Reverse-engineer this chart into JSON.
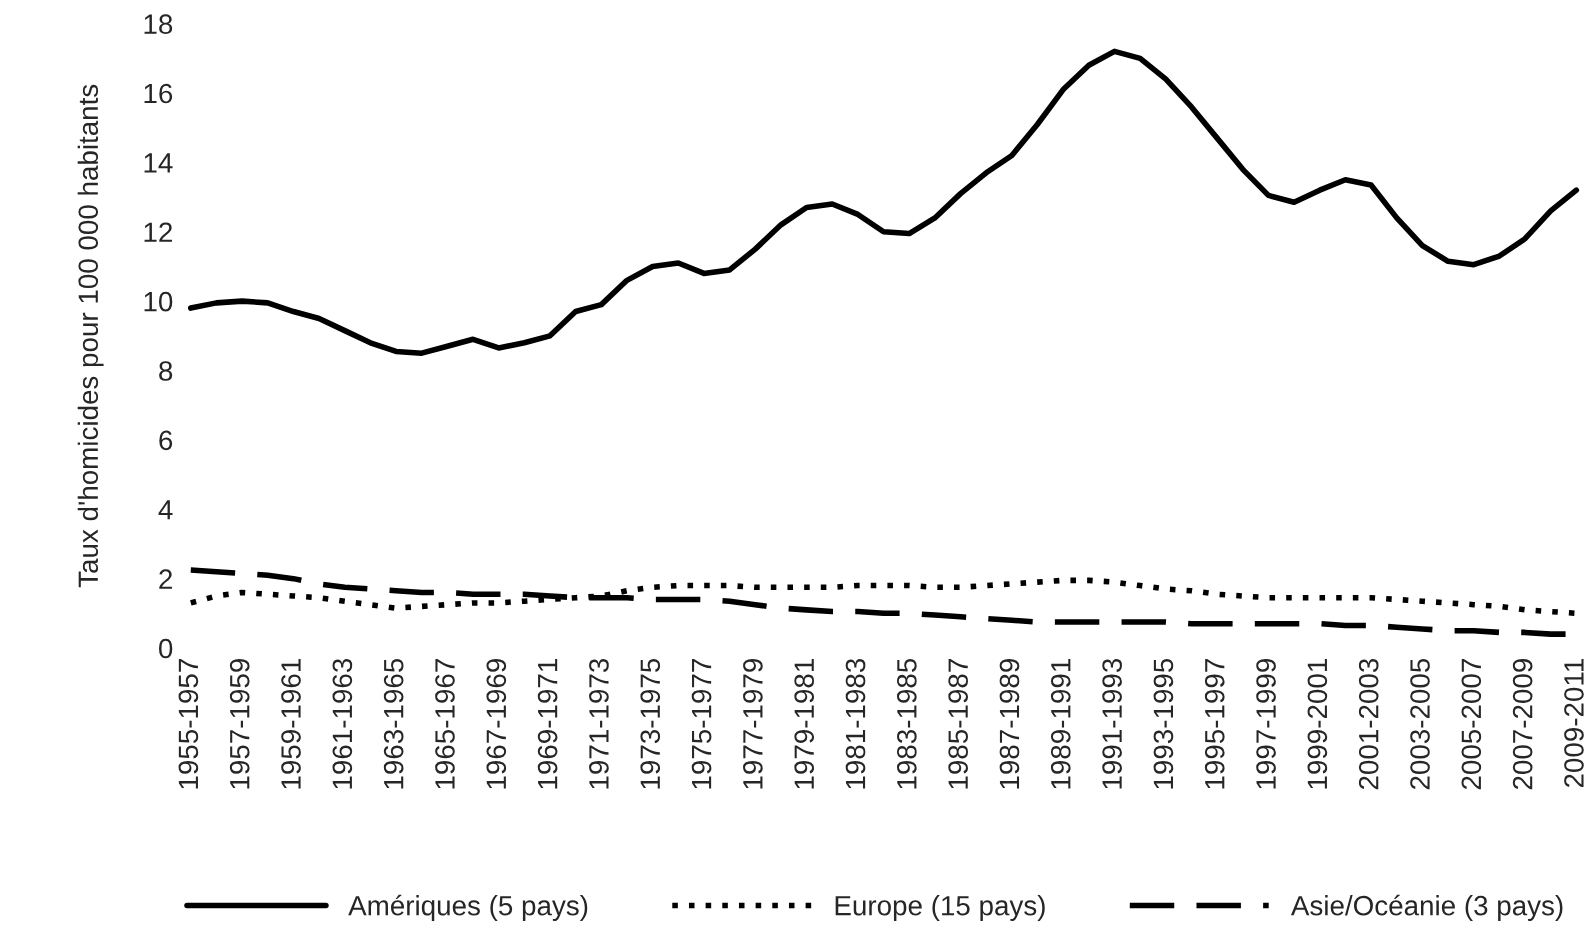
{
  "chart_data": {
    "type": "line",
    "ylabel": "Taux d'homicides pour 100 000 habitants",
    "categories": [
      "1955-1957",
      null,
      "1957-1959",
      null,
      "1959-1961",
      null,
      "1961-1963",
      null,
      "1963-1965",
      null,
      "1965-1967",
      null,
      "1967-1969",
      null,
      "1969-1971",
      null,
      "1971-1973",
      null,
      "1973-1975",
      null,
      "1975-1977",
      null,
      "1977-1979",
      null,
      "1979-1981",
      null,
      "1981-1983",
      null,
      "1983-1985",
      null,
      "1985-1987",
      null,
      "1987-1989",
      null,
      "1989-1991",
      null,
      "1991-1993",
      null,
      "1993-1995",
      null,
      "1995-1997",
      null,
      "1997-1999",
      null,
      "1999-2001",
      null,
      "2001-2003",
      null,
      "2003-2005",
      null,
      "2005-2007",
      null,
      "2007-2009",
      null,
      "2009-2011"
    ],
    "series": [
      {
        "name": "Amériques (5 pays)",
        "color": "#000000",
        "line_style": "solid",
        "values": [
          9.8,
          9.95,
          10.0,
          9.95,
          9.7,
          9.5,
          9.15,
          8.8,
          8.55,
          8.5,
          8.7,
          8.9,
          8.65,
          8.8,
          9.0,
          9.7,
          9.9,
          10.6,
          11.0,
          11.1,
          10.8,
          10.9,
          11.5,
          12.2,
          12.7,
          12.8,
          12.5,
          12.0,
          11.95,
          12.4,
          13.1,
          13.7,
          14.2,
          15.1,
          16.1,
          16.8,
          17.2,
          17.0,
          16.4,
          15.6,
          14.7,
          13.8,
          13.05,
          12.85,
          13.2,
          13.5,
          13.35,
          12.4,
          11.6,
          11.15,
          11.05,
          11.3,
          11.8,
          12.6,
          13.2
        ]
      },
      {
        "name": "Europe (15 pays)",
        "color": "#000000",
        "line_style": "dotted",
        "values": [
          1.3,
          1.5,
          1.6,
          1.55,
          1.5,
          1.45,
          1.35,
          1.25,
          1.15,
          1.2,
          1.25,
          1.3,
          1.3,
          1.35,
          1.4,
          1.45,
          1.5,
          1.65,
          1.75,
          1.8,
          1.8,
          1.8,
          1.75,
          1.75,
          1.75,
          1.75,
          1.8,
          1.8,
          1.8,
          1.75,
          1.75,
          1.8,
          1.85,
          1.9,
          1.95,
          1.95,
          1.9,
          1.8,
          1.7,
          1.65,
          1.55,
          1.5,
          1.45,
          1.45,
          1.45,
          1.45,
          1.45,
          1.4,
          1.35,
          1.3,
          1.25,
          1.2,
          1.1,
          1.05,
          1.0
        ]
      },
      {
        "name": "Asie/Océanie (3 pays)",
        "color": "#000000",
        "line_style": "dashed",
        "values": [
          2.25,
          2.2,
          2.15,
          2.1,
          2.0,
          1.85,
          1.75,
          1.7,
          1.65,
          1.6,
          1.6,
          1.55,
          1.55,
          1.55,
          1.5,
          1.45,
          1.45,
          1.45,
          1.4,
          1.4,
          1.4,
          1.35,
          1.25,
          1.15,
          1.1,
          1.05,
          1.05,
          1.0,
          1.0,
          0.95,
          0.9,
          0.85,
          0.8,
          0.75,
          0.75,
          0.75,
          0.75,
          0.75,
          0.75,
          0.7,
          0.7,
          0.7,
          0.7,
          0.7,
          0.7,
          0.65,
          0.65,
          0.6,
          0.55,
          0.5,
          0.5,
          0.45,
          0.45,
          0.4,
          0.4
        ]
      }
    ],
    "ylim": [
      0,
      18
    ],
    "yticks": [
      0,
      2,
      4,
      6,
      8,
      10,
      12,
      14,
      16,
      18
    ],
    "grid": false,
    "legend": "bottom"
  }
}
